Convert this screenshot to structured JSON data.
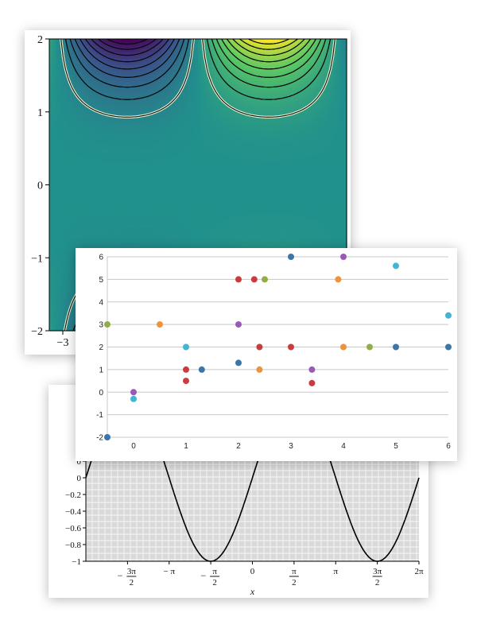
{
  "chart_data": [
    {
      "type": "heatmap",
      "title": "",
      "xlabel": "",
      "ylabel": "",
      "x_ticks": [
        "−3"
      ],
      "y_ticks": [
        "2",
        "1",
        "0",
        "−1",
        "−2"
      ],
      "ylim": [
        -2,
        2
      ],
      "xlim": [
        -3.3,
        3.3
      ],
      "colormap": [
        "#440154",
        "#3b528b",
        "#21918c",
        "#5ec962",
        "#fde725"
      ],
      "contour_levels": [
        -0.9,
        -0.8,
        -0.7,
        -0.6,
        -0.5,
        -0.4,
        -0.3,
        -0.2,
        -0.1,
        0.1,
        0.2,
        0.3,
        0.4,
        0.5,
        0.6,
        0.7,
        0.8,
        0.9
      ],
      "highlight_level_color": "#e8f0d0"
    },
    {
      "type": "line",
      "title": "",
      "xlabel": "x",
      "ylabel": "",
      "xlim": [
        -6.283,
        6.283
      ],
      "ylim": [
        -1,
        1
      ],
      "y_ticks": [
        "−1",
        "−0.8",
        "−0.6",
        "−0.4",
        "−0.2",
        "0",
        "0",
        "0",
        "0"
      ],
      "x_ticks": [
        {
          "label": "−3π/2",
          "num": "3π",
          "den": "2",
          "sign": "−",
          "value": -4.712
        },
        {
          "label": "−π",
          "num": "π",
          "den": "",
          "sign": "−",
          "value": -3.1416
        },
        {
          "label": "−π/2",
          "num": "π",
          "den": "2",
          "sign": "−",
          "value": -1.5708
        },
        {
          "label": "0",
          "num": "0",
          "den": "",
          "sign": "",
          "value": 0
        },
        {
          "label": "π/2",
          "num": "π",
          "den": "2",
          "sign": "",
          "value": 1.5708
        },
        {
          "label": "π",
          "num": "π",
          "den": "",
          "sign": "",
          "value": 3.1416
        },
        {
          "label": "3π/2",
          "num": "3π",
          "den": "2",
          "sign": "",
          "value": 4.712
        },
        {
          "label": "2π",
          "num": "2π",
          "den": "",
          "sign": "",
          "value": 6.283
        }
      ],
      "series": [
        {
          "function": "sin(x)",
          "color": "#000000"
        }
      ],
      "grid": true,
      "background": "#d9d9d9"
    },
    {
      "type": "scatter",
      "title": "",
      "xlabel": "",
      "ylabel": "",
      "xlim": [
        -0.5,
        6
      ],
      "ylim": [
        -2,
        6
      ],
      "x_ticks": [
        "0",
        "1",
        "2",
        "3",
        "4",
        "5",
        "6"
      ],
      "y_ticks": [
        "-2",
        "-1",
        "0",
        "1",
        "2",
        "3",
        "4",
        "5",
        "6"
      ],
      "grid": true,
      "points": [
        {
          "x": -0.5,
          "y": -2,
          "color": "#3a76a8"
        },
        {
          "x": -0.5,
          "y": 3,
          "color": "#8fae48"
        },
        {
          "x": 0,
          "y": 0,
          "color": "#9b59b6"
        },
        {
          "x": 0,
          "y": -0.3,
          "color": "#3fb6d3"
        },
        {
          "x": 0.5,
          "y": 3,
          "color": "#f0913c"
        },
        {
          "x": 1,
          "y": 2,
          "color": "#3fb6d3"
        },
        {
          "x": 1,
          "y": 1,
          "color": "#cc3b3b"
        },
        {
          "x": 1,
          "y": 0.5,
          "color": "#cc3b3b"
        },
        {
          "x": 1.3,
          "y": 1,
          "color": "#3a76a8"
        },
        {
          "x": 2,
          "y": 5,
          "color": "#cc3b3b"
        },
        {
          "x": 2,
          "y": 3,
          "color": "#9b59b6"
        },
        {
          "x": 2,
          "y": 1.3,
          "color": "#3a76a8"
        },
        {
          "x": 2.3,
          "y": 5,
          "color": "#cc3b3b"
        },
        {
          "x": 2.4,
          "y": 2,
          "color": "#cc3b3b"
        },
        {
          "x": 2.4,
          "y": 1,
          "color": "#f0913c"
        },
        {
          "x": 2.5,
          "y": 5,
          "color": "#8fae48"
        },
        {
          "x": 3,
          "y": 6,
          "color": "#3a76a8"
        },
        {
          "x": 3,
          "y": 2,
          "color": "#cc3b3b"
        },
        {
          "x": 3.4,
          "y": 1,
          "color": "#9b59b6"
        },
        {
          "x": 3.4,
          "y": 0.4,
          "color": "#cc3b3b"
        },
        {
          "x": 3.9,
          "y": 5,
          "color": "#f0913c"
        },
        {
          "x": 4,
          "y": 6,
          "color": "#9b59b6"
        },
        {
          "x": 4,
          "y": 2,
          "color": "#f0913c"
        },
        {
          "x": 4.5,
          "y": 2,
          "color": "#8fae48"
        },
        {
          "x": 5,
          "y": 5.6,
          "color": "#3fb6d3"
        },
        {
          "x": 5,
          "y": 2,
          "color": "#3a76a8"
        },
        {
          "x": 6,
          "y": 3.4,
          "color": "#3fb6d3"
        },
        {
          "x": 6,
          "y": 2,
          "color": "#3a76a8"
        }
      ]
    }
  ]
}
